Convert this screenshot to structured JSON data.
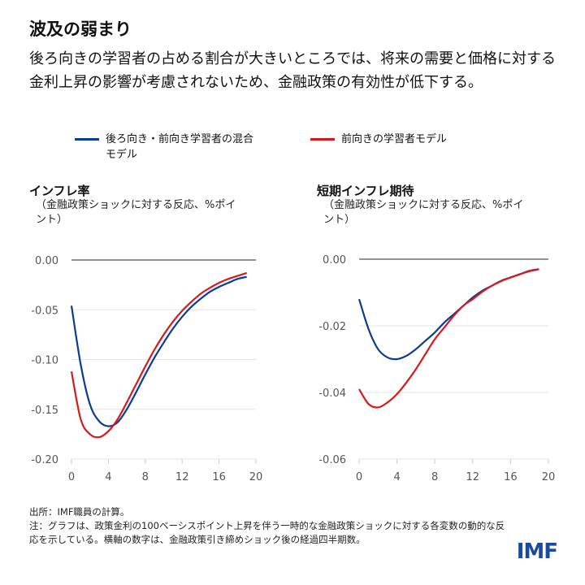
{
  "title": "波及の弱まり",
  "subtitle": "後ろ向きの学習者の占める割合が大きいところでは、将来の需要と価格に対する金利上昇の影響が考慮されないため、金融政策の有効性が低下する。",
  "legend": [
    {
      "label": "後ろ向き・前向き学習者の混合モデル",
      "color": "#0b3d91"
    },
    {
      "label": "前向きの学習者モデル",
      "color": "#d7191c"
    }
  ],
  "notes": {
    "source": "出所：IMF職員の計算。",
    "note": "注：グラフは、政策金利の100ベーシスポイント上昇を伴う一時的な金融政策ショックに対する各変数の動的な反応を示している。横軸の数字は、金融政策引き締めショック後の経過四半期数。"
  },
  "logo": "IMF",
  "chart_data": [
    {
      "type": "line",
      "title": "インフレ率",
      "ylabel": "（金融政策ショックに対する反応、%ポイント）",
      "x": [
        0,
        1,
        2,
        3,
        4,
        5,
        6,
        7,
        8,
        9,
        10,
        11,
        12,
        13,
        14,
        15,
        16,
        17,
        18,
        19
      ],
      "xlim": [
        0,
        20
      ],
      "ylim": [
        -0.2,
        0
      ],
      "xticks": [
        "0",
        "4",
        "8",
        "12",
        "16",
        "20"
      ],
      "yticks": [
        "0.00",
        "-0.05",
        "-0.10",
        "-0.15",
        "-0.20"
      ],
      "series": [
        {
          "name": "後ろ向き・前向き学習者の混合モデル",
          "values": [
            -0.046,
            -0.105,
            -0.145,
            -0.162,
            -0.167,
            -0.163,
            -0.15,
            -0.133,
            -0.115,
            -0.098,
            -0.083,
            -0.069,
            -0.057,
            -0.047,
            -0.039,
            -0.032,
            -0.027,
            -0.023,
            -0.019,
            -0.017
          ]
        },
        {
          "name": "前向きの学習者モデル",
          "values": [
            -0.112,
            -0.16,
            -0.175,
            -0.178,
            -0.172,
            -0.16,
            -0.143,
            -0.125,
            -0.107,
            -0.09,
            -0.075,
            -0.062,
            -0.051,
            -0.042,
            -0.034,
            -0.028,
            -0.023,
            -0.019,
            -0.016,
            -0.013
          ]
        }
      ]
    },
    {
      "type": "line",
      "title": "短期インフレ期待",
      "ylabel": "（金融政策ショックに対する反応、%ポイント）",
      "x": [
        0,
        1,
        2,
        3,
        4,
        5,
        6,
        7,
        8,
        9,
        10,
        11,
        12,
        13,
        14,
        15,
        16,
        17,
        18,
        19
      ],
      "xlim": [
        0,
        20
      ],
      "ylim": [
        -0.06,
        0
      ],
      "xticks": [
        "0",
        "4",
        "8",
        "12",
        "16",
        "20"
      ],
      "yticks": [
        "0.00",
        "-0.02",
        "-0.04",
        "-0.06"
      ],
      "series": [
        {
          "name": "後ろ向き・前向き学習者の混合モデル",
          "values": [
            -0.012,
            -0.021,
            -0.027,
            -0.0295,
            -0.03,
            -0.029,
            -0.027,
            -0.0245,
            -0.022,
            -0.019,
            -0.0165,
            -0.014,
            -0.0115,
            -0.0095,
            -0.008,
            -0.0065,
            -0.0055,
            -0.0045,
            -0.0035,
            -0.003
          ]
        },
        {
          "name": "前向きの学習者モデル",
          "values": [
            -0.039,
            -0.0435,
            -0.0445,
            -0.043,
            -0.0405,
            -0.037,
            -0.033,
            -0.0285,
            -0.024,
            -0.0205,
            -0.017,
            -0.014,
            -0.012,
            -0.0098,
            -0.008,
            -0.0066,
            -0.0055,
            -0.0045,
            -0.0036,
            -0.003
          ]
        }
      ]
    }
  ]
}
